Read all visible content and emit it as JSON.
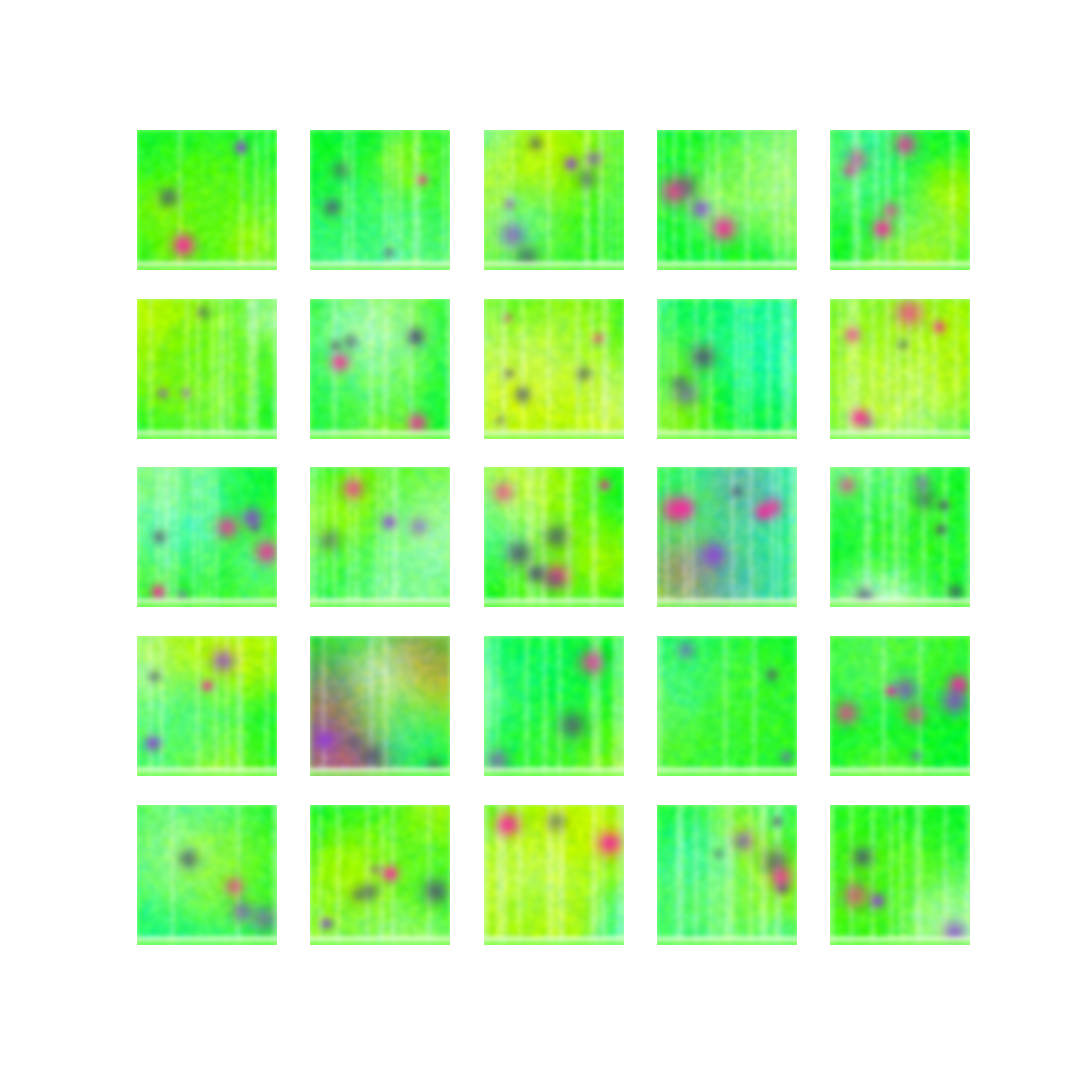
{
  "grid": {
    "rows": 5,
    "cols": 5,
    "count": 25,
    "palette": {
      "background": "#ffffff",
      "green": "#1ef03c",
      "lime": "#9cf542",
      "yellow": "#f5f500",
      "cyan": "#3cf5e6",
      "white": "#ffffff",
      "magenta": "#e62896",
      "purple": "#8a3cc8",
      "dark": "#50506e"
    },
    "tiles": [
      {
        "id": 1,
        "seed": 11,
        "dominant": "green"
      },
      {
        "id": 2,
        "seed": 23,
        "dominant": "green"
      },
      {
        "id": 3,
        "seed": 37,
        "dominant": "cyan"
      },
      {
        "id": 4,
        "seed": 41,
        "dominant": "green"
      },
      {
        "id": 5,
        "seed": 53,
        "dominant": "cyan"
      },
      {
        "id": 6,
        "seed": 67,
        "dominant": "yellow"
      },
      {
        "id": 7,
        "seed": 71,
        "dominant": "green"
      },
      {
        "id": 8,
        "seed": 83,
        "dominant": "yellow"
      },
      {
        "id": 9,
        "seed": 97,
        "dominant": "green"
      },
      {
        "id": 10,
        "seed": 101,
        "dominant": "yellow"
      },
      {
        "id": 11,
        "seed": 113,
        "dominant": "cyan"
      },
      {
        "id": 12,
        "seed": 127,
        "dominant": "green"
      },
      {
        "id": 13,
        "seed": 131,
        "dominant": "yellow"
      },
      {
        "id": 14,
        "seed": 149,
        "dominant": "magenta"
      },
      {
        "id": 15,
        "seed": 151,
        "dominant": "white"
      },
      {
        "id": 16,
        "seed": 163,
        "dominant": "yellow"
      },
      {
        "id": 17,
        "seed": 173,
        "dominant": "magenta"
      },
      {
        "id": 18,
        "seed": 181,
        "dominant": "green"
      },
      {
        "id": 19,
        "seed": 191,
        "dominant": "green"
      },
      {
        "id": 20,
        "seed": 197,
        "dominant": "green"
      },
      {
        "id": 21,
        "seed": 211,
        "dominant": "cyan"
      },
      {
        "id": 22,
        "seed": 223,
        "dominant": "yellow"
      },
      {
        "id": 23,
        "seed": 227,
        "dominant": "yellow"
      },
      {
        "id": 24,
        "seed": 233,
        "dominant": "cyan"
      },
      {
        "id": 25,
        "seed": 239,
        "dominant": "green"
      }
    ]
  }
}
